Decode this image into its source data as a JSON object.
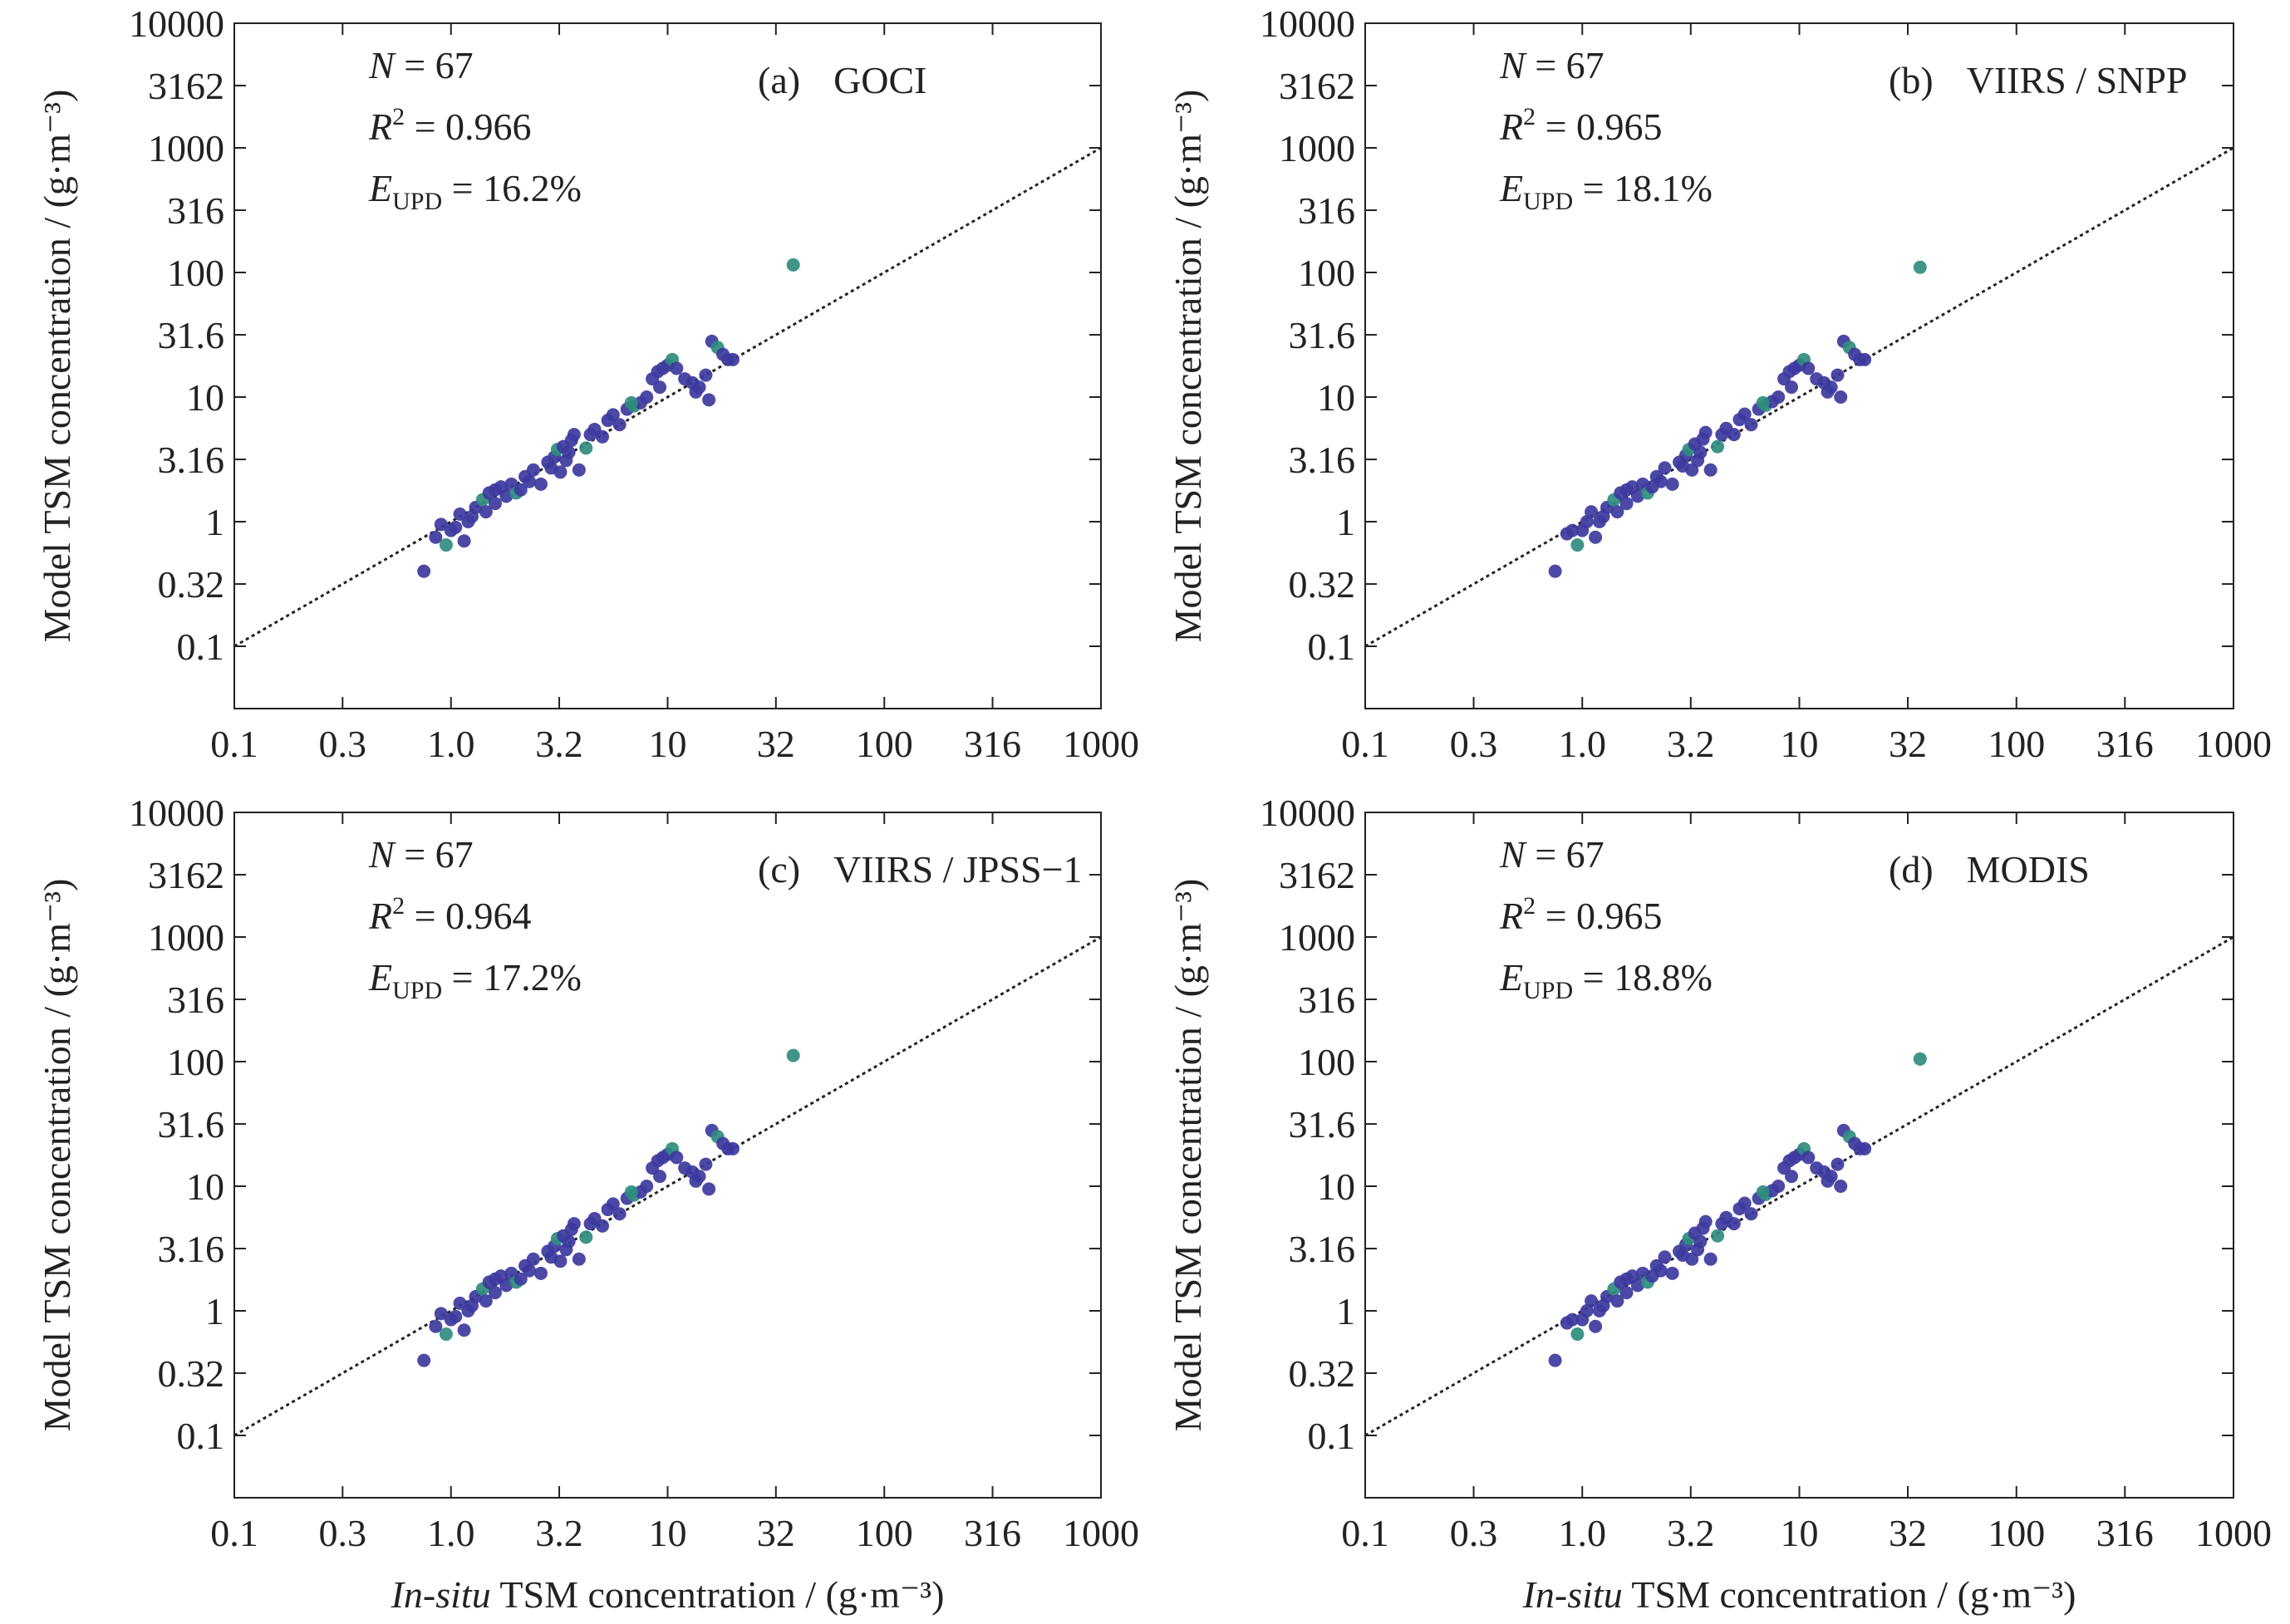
{
  "figure": {
    "ylabel": "Model TSM concentration / (g·m⁻³)",
    "xlabel_italic": "In-situ",
    "xlabel_rest": " TSM concentration / (g·m⁻³)"
  },
  "axes": {
    "x_ticks": [
      {
        "v": 0.1,
        "label": "0.1"
      },
      {
        "v": 0.316,
        "label": "0.3"
      },
      {
        "v": 1,
        "label": "1.0"
      },
      {
        "v": 3.16,
        "label": "3.2"
      },
      {
        "v": 10,
        "label": "10"
      },
      {
        "v": 31.6,
        "label": "32"
      },
      {
        "v": 100,
        "label": "100"
      },
      {
        "v": 316,
        "label": "316"
      },
      {
        "v": 1000,
        "label": "1000"
      }
    ],
    "y_ticks": [
      {
        "v": 0.1,
        "label": "0.1"
      },
      {
        "v": 0.316,
        "label": "0.32"
      },
      {
        "v": 1,
        "label": "1"
      },
      {
        "v": 3.16,
        "label": "3.16"
      },
      {
        "v": 10,
        "label": "10"
      },
      {
        "v": 31.6,
        "label": "31.6"
      },
      {
        "v": 100,
        "label": "100"
      },
      {
        "v": 316,
        "label": "316"
      },
      {
        "v": 1000,
        "label": "1000"
      },
      {
        "v": 3162,
        "label": "3162"
      },
      {
        "v": 10000,
        "label": "10000"
      }
    ]
  },
  "chart_data": [
    {
      "type": "scatter",
      "panel": "(a)",
      "sensor": "GOCI",
      "n_text": "67",
      "r2_text": "0.966",
      "e_text": "16.2%",
      "x_scale": "log",
      "y_scale": "log",
      "xlim": [
        0.1,
        1000
      ],
      "ylim": [
        0.03162,
        10000
      ],
      "reference_line": "1:1 dotted",
      "grid": false,
      "points": [
        [
          0.75,
          0.4
        ],
        [
          0.85,
          0.75
        ],
        [
          0.9,
          0.95
        ],
        [
          0.95,
          0.65
        ],
        [
          1.0,
          0.85
        ],
        [
          1.05,
          0.9
        ],
        [
          1.1,
          1.15
        ],
        [
          1.15,
          0.7
        ],
        [
          1.2,
          1.0
        ],
        [
          1.3,
          1.3
        ],
        [
          1.4,
          1.5
        ],
        [
          1.45,
          1.2
        ],
        [
          1.5,
          1.7
        ],
        [
          1.6,
          1.4
        ],
        [
          1.7,
          1.9
        ],
        [
          1.8,
          1.6
        ],
        [
          1.9,
          2.0
        ],
        [
          2.0,
          1.7
        ],
        [
          2.1,
          1.8
        ],
        [
          2.2,
          2.3
        ],
        [
          2.4,
          2.6
        ],
        [
          2.6,
          2.0
        ],
        [
          2.8,
          3.0
        ],
        [
          3.0,
          3.3
        ],
        [
          3.1,
          3.8
        ],
        [
          3.2,
          2.5
        ],
        [
          3.3,
          4.0
        ],
        [
          3.5,
          3.6
        ],
        [
          3.6,
          4.5
        ],
        [
          3.7,
          5.0
        ],
        [
          3.9,
          2.6
        ],
        [
          4.2,
          3.9
        ],
        [
          4.6,
          5.5
        ],
        [
          5.0,
          4.8
        ],
        [
          5.3,
          6.5
        ],
        [
          5.6,
          7.2
        ],
        [
          6.0,
          6.0
        ],
        [
          6.5,
          8.0
        ],
        [
          7.0,
          8.5
        ],
        [
          7.5,
          9.0
        ],
        [
          8.0,
          10.0
        ],
        [
          8.5,
          14.0
        ],
        [
          9.0,
          16.0
        ],
        [
          9.5,
          17.0
        ],
        [
          10.0,
          18.0
        ],
        [
          10.5,
          20.0
        ],
        [
          11.0,
          17.0
        ],
        [
          12.0,
          14.0
        ],
        [
          13.0,
          13.0
        ],
        [
          14.0,
          12.0
        ],
        [
          15.0,
          15.0
        ],
        [
          16.0,
          28.0
        ],
        [
          17.0,
          25.0
        ],
        [
          18.0,
          22.0
        ],
        [
          19.0,
          20.0
        ],
        [
          13.5,
          11.0
        ],
        [
          15.5,
          9.5
        ],
        [
          20.0,
          20.0
        ],
        [
          9.2,
          12.0
        ],
        [
          6.8,
          9.0
        ],
        [
          4.4,
          5.0
        ],
        [
          2.9,
          2.7
        ],
        [
          1.6,
          1.8
        ],
        [
          1.25,
          1.1
        ],
        [
          2.3,
          2.1
        ],
        [
          3.4,
          3.1
        ],
        [
          38.0,
          115.0
        ]
      ]
    },
    {
      "type": "scatter",
      "panel": "(b)",
      "sensor": "VIIRS / SNPP",
      "n_text": "67",
      "r2_text": "0.965",
      "e_text": "18.1%",
      "x_scale": "log",
      "y_scale": "log",
      "xlim": [
        0.1,
        1000
      ],
      "ylim": [
        0.03162,
        10000
      ],
      "reference_line": "1:1 dotted",
      "grid": false,
      "points": [
        [
          0.75,
          0.4
        ],
        [
          0.85,
          0.8
        ],
        [
          0.9,
          0.85
        ],
        [
          0.95,
          0.65
        ],
        [
          1.0,
          0.85
        ],
        [
          1.05,
          1.0
        ],
        [
          1.1,
          1.2
        ],
        [
          1.15,
          0.75
        ],
        [
          1.2,
          1.0
        ],
        [
          1.3,
          1.3
        ],
        [
          1.4,
          1.5
        ],
        [
          1.45,
          1.2
        ],
        [
          1.5,
          1.7
        ],
        [
          1.6,
          1.4
        ],
        [
          1.7,
          1.9
        ],
        [
          1.8,
          1.6
        ],
        [
          1.9,
          2.0
        ],
        [
          2.0,
          1.7
        ],
        [
          2.1,
          1.9
        ],
        [
          2.2,
          2.3
        ],
        [
          2.4,
          2.7
        ],
        [
          2.6,
          2.0
        ],
        [
          2.8,
          3.0
        ],
        [
          3.0,
          3.4
        ],
        [
          3.1,
          3.8
        ],
        [
          3.2,
          2.6
        ],
        [
          3.3,
          4.2
        ],
        [
          3.5,
          3.6
        ],
        [
          3.6,
          4.6
        ],
        [
          3.7,
          5.2
        ],
        [
          3.9,
          2.6
        ],
        [
          4.2,
          4.0
        ],
        [
          4.6,
          5.6
        ],
        [
          5.0,
          5.0
        ],
        [
          5.3,
          6.6
        ],
        [
          5.6,
          7.3
        ],
        [
          6.0,
          6.0
        ],
        [
          6.5,
          8.0
        ],
        [
          7.0,
          8.6
        ],
        [
          7.5,
          9.2
        ],
        [
          8.0,
          10.0
        ],
        [
          8.5,
          14.0
        ],
        [
          9.0,
          16.0
        ],
        [
          9.5,
          17.0
        ],
        [
          10.0,
          18.0
        ],
        [
          10.5,
          20.0
        ],
        [
          11.0,
          17.0
        ],
        [
          12.0,
          14.0
        ],
        [
          13.0,
          13.0
        ],
        [
          14.0,
          12.0
        ],
        [
          15.0,
          15.0
        ],
        [
          16.0,
          28.0
        ],
        [
          17.0,
          25.0
        ],
        [
          18.0,
          22.0
        ],
        [
          19.0,
          20.0
        ],
        [
          13.5,
          11.0
        ],
        [
          15.5,
          10.0
        ],
        [
          20.0,
          20.0
        ],
        [
          9.2,
          12.0
        ],
        [
          6.8,
          9.0
        ],
        [
          4.4,
          5.0
        ],
        [
          2.9,
          2.8
        ],
        [
          1.6,
          1.8
        ],
        [
          1.25,
          1.1
        ],
        [
          2.3,
          2.1
        ],
        [
          3.4,
          3.1
        ],
        [
          36.0,
          110.0
        ]
      ]
    },
    {
      "type": "scatter",
      "panel": "(c)",
      "sensor": "VIIRS / JPSS−1",
      "n_text": "67",
      "r2_text": "0.964",
      "e_text": "17.2%",
      "x_scale": "log",
      "y_scale": "log",
      "xlim": [
        0.1,
        1000
      ],
      "ylim": [
        0.03162,
        10000
      ],
      "reference_line": "1:1 dotted",
      "grid": false,
      "points": [
        [
          0.75,
          0.4
        ],
        [
          0.85,
          0.75
        ],
        [
          0.9,
          0.95
        ],
        [
          0.95,
          0.65
        ],
        [
          1.0,
          0.85
        ],
        [
          1.05,
          0.9
        ],
        [
          1.1,
          1.15
        ],
        [
          1.15,
          0.7
        ],
        [
          1.2,
          1.0
        ],
        [
          1.3,
          1.3
        ],
        [
          1.4,
          1.5
        ],
        [
          1.45,
          1.2
        ],
        [
          1.5,
          1.7
        ],
        [
          1.6,
          1.4
        ],
        [
          1.7,
          1.9
        ],
        [
          1.8,
          1.6
        ],
        [
          1.9,
          2.0
        ],
        [
          2.0,
          1.7
        ],
        [
          2.1,
          1.8
        ],
        [
          2.2,
          2.3
        ],
        [
          2.4,
          2.6
        ],
        [
          2.6,
          2.0
        ],
        [
          2.8,
          3.0
        ],
        [
          3.0,
          3.3
        ],
        [
          3.1,
          3.8
        ],
        [
          3.2,
          2.5
        ],
        [
          3.3,
          4.0
        ],
        [
          3.5,
          3.6
        ],
        [
          3.6,
          4.5
        ],
        [
          3.7,
          5.0
        ],
        [
          3.9,
          2.6
        ],
        [
          4.2,
          3.9
        ],
        [
          4.6,
          5.5
        ],
        [
          5.0,
          4.8
        ],
        [
          5.3,
          6.5
        ],
        [
          5.6,
          7.2
        ],
        [
          6.0,
          6.0
        ],
        [
          6.5,
          8.0
        ],
        [
          7.0,
          8.5
        ],
        [
          7.5,
          9.0
        ],
        [
          8.0,
          10.0
        ],
        [
          8.5,
          14.0
        ],
        [
          9.0,
          16.0
        ],
        [
          9.5,
          17.0
        ],
        [
          10.0,
          18.0
        ],
        [
          10.5,
          20.0
        ],
        [
          11.0,
          17.0
        ],
        [
          12.0,
          14.0
        ],
        [
          13.0,
          13.0
        ],
        [
          14.0,
          12.0
        ],
        [
          15.0,
          15.0
        ],
        [
          16.0,
          28.0
        ],
        [
          17.0,
          25.0
        ],
        [
          18.0,
          22.0
        ],
        [
          19.0,
          20.0
        ],
        [
          13.5,
          11.0
        ],
        [
          15.5,
          9.5
        ],
        [
          20.0,
          20.0
        ],
        [
          9.2,
          12.0
        ],
        [
          6.8,
          9.0
        ],
        [
          4.4,
          5.0
        ],
        [
          2.9,
          2.7
        ],
        [
          1.6,
          1.8
        ],
        [
          1.25,
          1.1
        ],
        [
          2.3,
          2.1
        ],
        [
          3.4,
          3.1
        ],
        [
          38.0,
          112.0
        ]
      ]
    },
    {
      "type": "scatter",
      "panel": "(d)",
      "sensor": "MODIS",
      "n_text": "67",
      "r2_text": "0.965",
      "e_text": "18.8%",
      "x_scale": "log",
      "y_scale": "log",
      "xlim": [
        0.1,
        1000
      ],
      "ylim": [
        0.03162,
        10000
      ],
      "reference_line": "1:1 dotted",
      "grid": false,
      "points": [
        [
          0.75,
          0.4
        ],
        [
          0.85,
          0.8
        ],
        [
          0.9,
          0.85
        ],
        [
          0.95,
          0.65
        ],
        [
          1.0,
          0.85
        ],
        [
          1.05,
          1.0
        ],
        [
          1.1,
          1.2
        ],
        [
          1.15,
          0.75
        ],
        [
          1.2,
          1.0
        ],
        [
          1.3,
          1.3
        ],
        [
          1.4,
          1.5
        ],
        [
          1.45,
          1.2
        ],
        [
          1.5,
          1.7
        ],
        [
          1.6,
          1.4
        ],
        [
          1.7,
          1.9
        ],
        [
          1.8,
          1.6
        ],
        [
          1.9,
          2.0
        ],
        [
          2.0,
          1.7
        ],
        [
          2.1,
          1.9
        ],
        [
          2.2,
          2.3
        ],
        [
          2.4,
          2.7
        ],
        [
          2.6,
          2.0
        ],
        [
          2.8,
          3.0
        ],
        [
          3.0,
          3.4
        ],
        [
          3.1,
          3.8
        ],
        [
          3.2,
          2.6
        ],
        [
          3.3,
          4.2
        ],
        [
          3.5,
          3.6
        ],
        [
          3.6,
          4.6
        ],
        [
          3.7,
          5.2
        ],
        [
          3.9,
          2.6
        ],
        [
          4.2,
          4.0
        ],
        [
          4.6,
          5.6
        ],
        [
          5.0,
          5.0
        ],
        [
          5.3,
          6.6
        ],
        [
          5.6,
          7.3
        ],
        [
          6.0,
          6.0
        ],
        [
          6.5,
          8.0
        ],
        [
          7.0,
          8.6
        ],
        [
          7.5,
          9.2
        ],
        [
          8.0,
          10.0
        ],
        [
          8.5,
          14.0
        ],
        [
          9.0,
          16.0
        ],
        [
          9.5,
          17.0
        ],
        [
          10.0,
          18.0
        ],
        [
          10.5,
          20.0
        ],
        [
          11.0,
          17.0
        ],
        [
          12.0,
          14.0
        ],
        [
          13.0,
          13.0
        ],
        [
          14.0,
          12.0
        ],
        [
          15.0,
          15.0
        ],
        [
          16.0,
          28.0
        ],
        [
          17.0,
          25.0
        ],
        [
          18.0,
          22.0
        ],
        [
          19.0,
          20.0
        ],
        [
          13.5,
          11.0
        ],
        [
          15.5,
          10.0
        ],
        [
          20.0,
          20.0
        ],
        [
          9.2,
          12.0
        ],
        [
          6.8,
          9.0
        ],
        [
          4.4,
          5.0
        ],
        [
          2.9,
          2.8
        ],
        [
          1.6,
          1.8
        ],
        [
          1.25,
          1.1
        ],
        [
          2.3,
          2.1
        ],
        [
          3.4,
          3.1
        ],
        [
          36.0,
          105.0
        ]
      ]
    }
  ],
  "colors": {
    "point": "#3d3a9e",
    "point_accent": "#2e8c7e",
    "axis": "#222222",
    "reference_line": "#222222"
  }
}
